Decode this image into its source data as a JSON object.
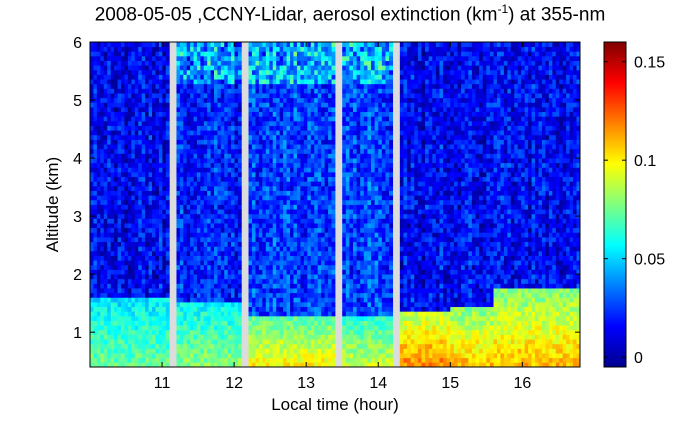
{
  "chart_data": {
    "type": "heatmap",
    "title": {
      "prefix": "2008-05-05 ,CCNY-Lidar, aerosol extinction (km",
      "superscript": "-1",
      "suffix": ") at 355-nm"
    },
    "xlabel": "Local time (hour)",
    "ylabel": "Altitude (km)",
    "xlim": [
      10.0,
      16.8
    ],
    "ylim": [
      0.4,
      6.0
    ],
    "x_ticks": [
      11,
      12,
      13,
      14,
      15,
      16
    ],
    "x_tick_labels": [
      "11",
      "12",
      "13",
      "14",
      "15",
      "16"
    ],
    "y_ticks": [
      1,
      2,
      3,
      4,
      5,
      6
    ],
    "y_tick_labels": [
      "1",
      "2",
      "3",
      "4",
      "5",
      "6"
    ],
    "colorbar": {
      "range": [
        -0.005,
        0.16
      ],
      "ticks": [
        0,
        0.05,
        0.1,
        0.15
      ],
      "tick_labels": [
        "0",
        "0.05",
        "0.1",
        "0.15"
      ],
      "colormap": "jet"
    },
    "data_gaps_hours": [
      [
        11.1,
        11.2
      ],
      [
        12.1,
        12.2
      ],
      [
        13.4,
        13.5
      ],
      [
        14.2,
        14.3
      ]
    ],
    "time_segments": [
      {
        "start": 10.0,
        "end": 11.1,
        "boundary_layer_top_km": 1.6,
        "near_surface_extinction": 0.075,
        "aloft_extinction": 0.015
      },
      {
        "start": 11.2,
        "end": 12.1,
        "boundary_layer_top_km": 1.5,
        "near_surface_extinction": 0.08,
        "aloft_extinction": 0.02
      },
      {
        "start": 12.2,
        "end": 13.4,
        "boundary_layer_top_km": 1.3,
        "near_surface_extinction": 0.1,
        "aloft_extinction": 0.025
      },
      {
        "start": 13.5,
        "end": 14.2,
        "boundary_layer_top_km": 1.3,
        "near_surface_extinction": 0.09,
        "aloft_extinction": 0.025
      },
      {
        "start": 14.3,
        "end": 15.0,
        "boundary_layer_top_km": 1.4,
        "near_surface_extinction": 0.12,
        "aloft_extinction": 0.015
      },
      {
        "start": 15.0,
        "end": 15.6,
        "boundary_layer_top_km": 1.45,
        "near_surface_extinction": 0.11,
        "aloft_extinction": 0.015
      },
      {
        "start": 15.6,
        "end": 16.8,
        "boundary_layer_top_km": 1.75,
        "near_surface_extinction": 0.11,
        "aloft_extinction": 0.015
      }
    ],
    "grid": false
  }
}
